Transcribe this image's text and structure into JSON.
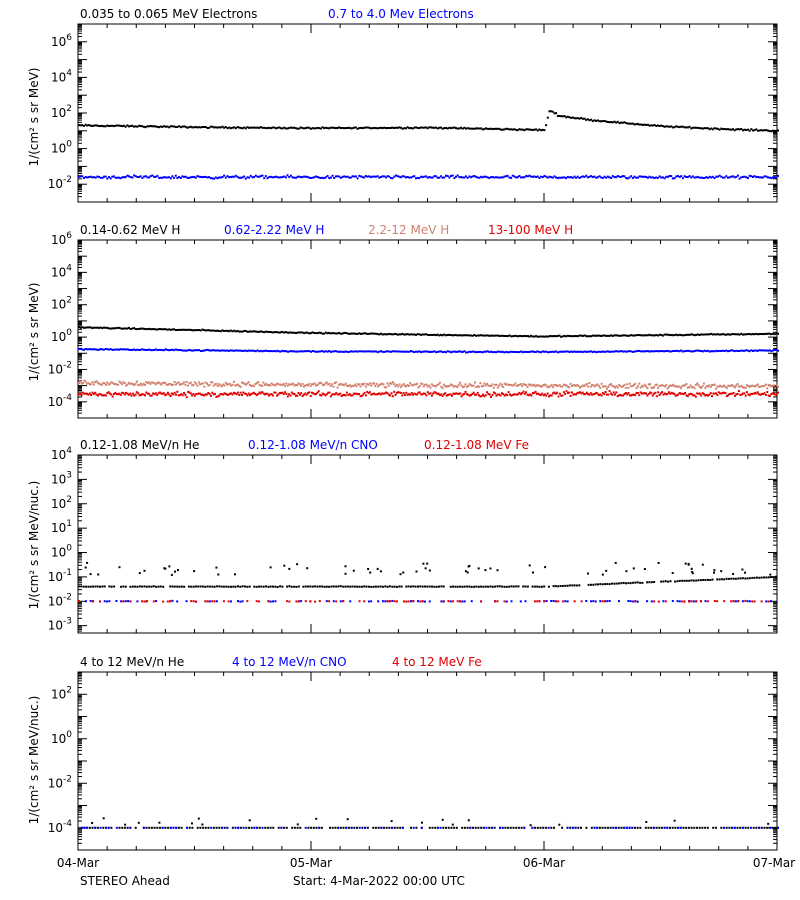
{
  "colors": {
    "black": "#000000",
    "blue": "#0000ff",
    "salmon": "#d2826e",
    "red": "#e00000"
  },
  "x_axis": {
    "ticks": [
      "04-Mar",
      "05-Mar",
      "06-Mar",
      "07-Mar"
    ],
    "spacecraft": "STEREO Ahead",
    "start_label": "Start:  4-Mar-2022 00:00 UTC"
  },
  "chart_data": [
    {
      "type": "scatter",
      "log_y": true,
      "ylabel": "1/(cm² s sr MeV)",
      "ylim": [
        0.001,
        10000000
      ],
      "y_ticks": [
        {
          "value": 1000000,
          "base": "10",
          "exp": "6"
        },
        {
          "value": 10000,
          "base": "10",
          "exp": "4"
        },
        {
          "value": 100,
          "base": "10",
          "exp": "2"
        },
        {
          "value": 1,
          "base": "10",
          "exp": "0"
        },
        {
          "value": 0.01,
          "base": "10",
          "exp": "-2"
        }
      ],
      "xlim": [
        0,
        3
      ],
      "series": [
        {
          "name": "0.035 to 0.065 MeV Electrons",
          "color": "#000000",
          "x": [
            0,
            0.5,
            1.0,
            1.5,
            2.0,
            2.02,
            2.06,
            2.2,
            2.5,
            2.8,
            3.0
          ],
          "y": [
            20,
            16,
            14,
            15,
            11,
            150,
            70,
            40,
            18,
            12,
            10
          ]
        },
        {
          "name": "0.7 to 4.0 Mev Electrons",
          "color": "#0000ff",
          "x": [
            0,
            1.0,
            2.0,
            3.0
          ],
          "y": [
            0.025,
            0.025,
            0.025,
            0.025
          ]
        }
      ]
    },
    {
      "type": "scatter",
      "log_y": true,
      "ylabel": "1/(cm² s sr MeV)",
      "ylim": [
        1e-05,
        1000000
      ],
      "y_ticks": [
        {
          "value": 1000000,
          "base": "10",
          "exp": "6"
        },
        {
          "value": 10000,
          "base": "10",
          "exp": "4"
        },
        {
          "value": 100,
          "base": "10",
          "exp": "2"
        },
        {
          "value": 1,
          "base": "10",
          "exp": "0"
        },
        {
          "value": 0.01,
          "base": "10",
          "exp": "-2"
        },
        {
          "value": 0.0001,
          "base": "10",
          "exp": "-4"
        }
      ],
      "xlim": [
        0,
        3
      ],
      "series": [
        {
          "name": "0.14-0.62 MeV H",
          "color": "#000000",
          "x": [
            0,
            1.0,
            2.0,
            3.0
          ],
          "y": [
            4,
            1.8,
            1.1,
            1.6
          ]
        },
        {
          "name": "0.62-2.22 MeV H",
          "color": "#0000ff",
          "x": [
            0,
            1.0,
            2.0,
            3.0
          ],
          "y": [
            0.18,
            0.13,
            0.12,
            0.15
          ]
        },
        {
          "name": "2.2-12 MeV H",
          "color": "#d2826e",
          "x": [
            0,
            1.0,
            2.0,
            3.0
          ],
          "y": [
            0.0015,
            0.0011,
            0.001,
            0.0009
          ]
        },
        {
          "name": "13-100 MeV H",
          "color": "#e00000",
          "x": [
            0,
            1.0,
            2.0,
            3.0
          ],
          "y": [
            0.0003,
            0.0003,
            0.0003,
            0.0003
          ]
        }
      ]
    },
    {
      "type": "scatter",
      "log_y": true,
      "ylabel": "1/(cm² s sr MeV/nuc.)",
      "ylim": [
        0.0005,
        10000
      ],
      "y_ticks": [
        {
          "value": 10000,
          "base": "10",
          "exp": "4"
        },
        {
          "value": 1000,
          "base": "10",
          "exp": "3"
        },
        {
          "value": 100,
          "base": "10",
          "exp": "2"
        },
        {
          "value": 10,
          "base": "10",
          "exp": "1"
        },
        {
          "value": 1,
          "base": "10",
          "exp": "0"
        },
        {
          "value": 0.1,
          "base": "10",
          "exp": "-1"
        },
        {
          "value": 0.01,
          "base": "10",
          "exp": "-2"
        },
        {
          "value": 0.001,
          "base": "10",
          "exp": "-3"
        }
      ],
      "xlim": [
        0,
        3
      ],
      "series": [
        {
          "name": "0.12-1.08 MeV/n He",
          "color": "#000000",
          "x": [
            0,
            1.0,
            2.0,
            3.0
          ],
          "y": [
            0.04,
            0.04,
            0.04,
            0.1
          ]
        },
        {
          "name": "0.12-1.08 MeV/n CNO",
          "color": "#0000ff",
          "x": [
            0,
            1.0,
            2.0,
            3.0
          ],
          "y": [
            0.01,
            0.01,
            0.01,
            0.01
          ]
        },
        {
          "name": "0.12-1.08 MeV Fe",
          "color": "#e00000",
          "x": [
            0,
            1.0,
            2.0,
            3.0
          ],
          "y": [
            0.01,
            0.01,
            0.01,
            0.01
          ]
        }
      ]
    },
    {
      "type": "scatter",
      "log_y": true,
      "ylabel": "1/(cm² s sr MeV/nuc.)",
      "ylim": [
        1e-05,
        1000
      ],
      "y_ticks": [
        {
          "value": 100,
          "base": "10",
          "exp": "2"
        },
        {
          "value": 1,
          "base": "10",
          "exp": "0"
        },
        {
          "value": 0.01,
          "base": "10",
          "exp": "-2"
        },
        {
          "value": 0.0001,
          "base": "10",
          "exp": "-4"
        }
      ],
      "xlim": [
        0,
        3
      ],
      "series": [
        {
          "name": "4 to 12 MeV/n He",
          "color": "#000000",
          "x": [
            0,
            1.0,
            2.0,
            3.0
          ],
          "y": [
            0.0001,
            0.0001,
            0.0001,
            0.0001
          ]
        },
        {
          "name": "4 to 12 MeV/n CNO",
          "color": "#0000ff",
          "x": [
            0,
            1.0,
            2.0,
            3.0
          ],
          "y": [
            0.0001,
            0.0001,
            0.0001,
            0.0001
          ]
        },
        {
          "name": "4 to 12 MeV Fe",
          "color": "#e00000",
          "x": [],
          "y": []
        }
      ]
    }
  ]
}
